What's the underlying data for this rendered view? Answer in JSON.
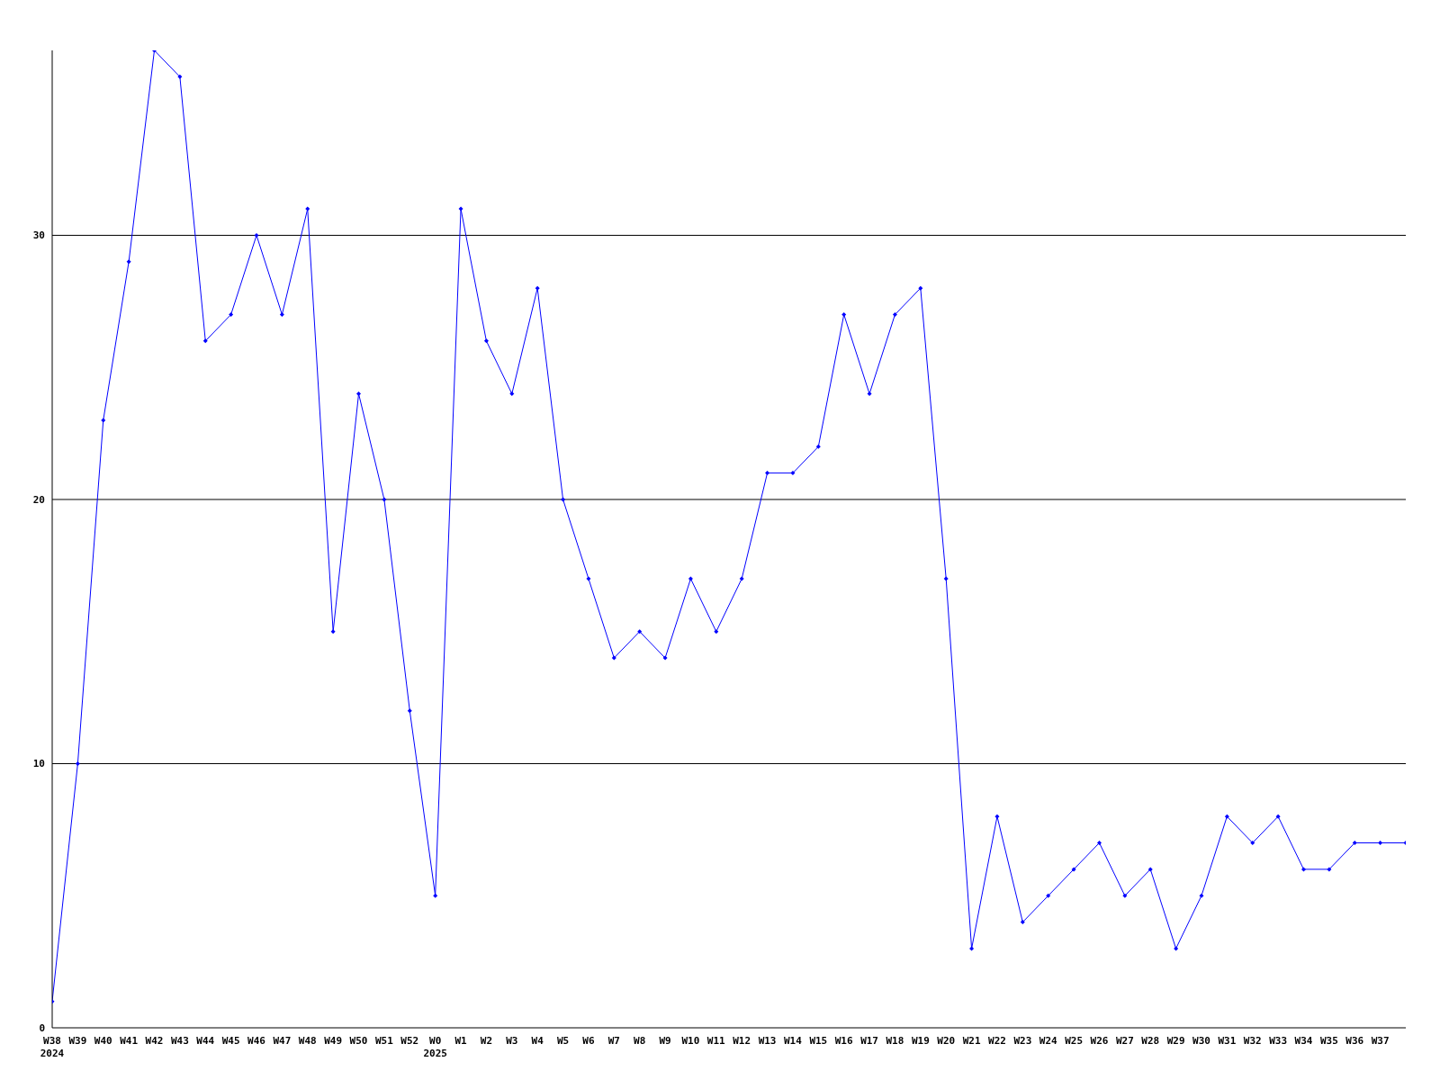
{
  "chart_data": {
    "type": "line",
    "categories": [
      "W38\n2024",
      "W39",
      "W40",
      "W41",
      "W42",
      "W43",
      "W44",
      "W45",
      "W46",
      "W47",
      "W48",
      "W49",
      "W50",
      "W51",
      "W52",
      "W0\n2025",
      "W1",
      "W2",
      "W3",
      "W4",
      "W5",
      "W6",
      "W7",
      "W8",
      "W9",
      "W10",
      "W11",
      "W12",
      "W13",
      "W14",
      "W15",
      "W16",
      "W17",
      "W18",
      "W19",
      "W20",
      "W21",
      "W22",
      "W23",
      "W24",
      "W25",
      "W26",
      "W27",
      "W28",
      "W29",
      "W30",
      "W31",
      "W32",
      "W33",
      "W34",
      "W35",
      "W36",
      "W37",
      null
    ],
    "series": [
      {
        "color": "#0000ff",
        "values": [
          1,
          10,
          23,
          29,
          37,
          36,
          26,
          27,
          30,
          27,
          31,
          15,
          24,
          20,
          12,
          5,
          31,
          26,
          24,
          28,
          20,
          17,
          14,
          15,
          14,
          17,
          15,
          17,
          21,
          21,
          22,
          27,
          24,
          27,
          28,
          17,
          3,
          8,
          4,
          5,
          6,
          7,
          5,
          6,
          3,
          5,
          8,
          7,
          8,
          6,
          6,
          7,
          7,
          7
        ]
      }
    ],
    "ylim": [
      0,
      37
    ],
    "yticks": [
      0,
      10,
      20,
      30
    ],
    "grid": "y",
    "marker": "diamond",
    "line_style": "solid",
    "legend": false
  }
}
